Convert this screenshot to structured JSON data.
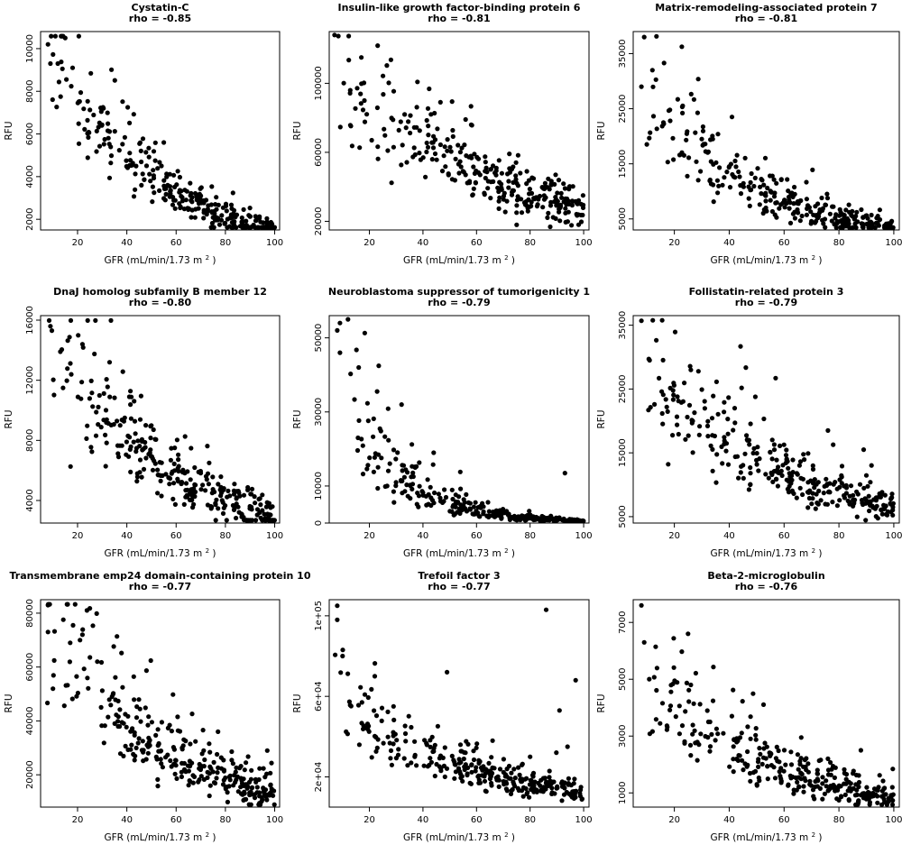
{
  "figure": {
    "xlabel": "GFR (mL/min/1.73 m",
    "xlabel_sup": "2",
    "xlabel_close": ")",
    "ylabel": "RFU"
  },
  "chart_data": [
    {
      "type": "scatter",
      "title": "Cystatin-C",
      "subtitle": "rho = -0.85",
      "xlabel": "GFR (mL/min/1.73 m2)",
      "ylabel": "RFU",
      "xlim": [
        5,
        102
      ],
      "ylim": [
        1500,
        10800
      ],
      "xticks": [
        20,
        40,
        60,
        80,
        100
      ],
      "yticks": [
        2000,
        4000,
        6000,
        8000,
        10000
      ],
      "ytick_labels": [
        "2000",
        "4000",
        "6000",
        "8000",
        "10000"
      ],
      "trend": {
        "type": "exp",
        "a": 11800,
        "b": 0.0215,
        "sd": 0.17
      },
      "outliers": [
        [
          8,
          10200
        ],
        [
          15,
          10500
        ],
        [
          12,
          9300
        ],
        [
          9,
          9300
        ],
        [
          18,
          9100
        ],
        [
          55,
          5600
        ],
        [
          88,
          1700
        ]
      ],
      "n_points": 300,
      "seed": 11
    },
    {
      "type": "scatter",
      "title": "Insulin-like growth factor-binding protein 6",
      "subtitle": "rho = -0.81",
      "xlabel": "GFR (mL/min/1.73 m2)",
      "ylabel": "RFU",
      "xlim": [
        5,
        102
      ],
      "ylim": [
        15000,
        130000
      ],
      "xticks": [
        20,
        40,
        60,
        80,
        100
      ],
      "yticks": [
        20000,
        60000,
        100000
      ],
      "ytick_labels": [
        "20000",
        "60000",
        "100000"
      ],
      "trend": {
        "type": "exp",
        "a": 120000,
        "b": 0.0148,
        "sd": 0.2
      },
      "outliers": [
        [
          7,
          128000
        ],
        [
          17,
          115000
        ],
        [
          43,
          82000
        ],
        [
          58,
          76000
        ],
        [
          75,
          18000
        ]
      ],
      "n_points": 300,
      "seed": 22
    },
    {
      "type": "scatter",
      "title": "Matrix-remodeling-associated protein 7",
      "subtitle": "rho = -0.81",
      "xlabel": "GFR (mL/min/1.73 m2)",
      "ylabel": "RFU",
      "xlim": [
        5,
        102
      ],
      "ylim": [
        3000,
        39000
      ],
      "xticks": [
        20,
        40,
        60,
        80,
        100
      ],
      "yticks": [
        5000,
        15000,
        25000,
        35000
      ],
      "ytick_labels": [
        "5000",
        "15000",
        "25000",
        "35000"
      ],
      "trend": {
        "type": "exp",
        "a": 34000,
        "b": 0.024,
        "sd": 0.25
      },
      "outliers": [
        [
          9,
          38000
        ],
        [
          12,
          32000
        ],
        [
          8,
          29000
        ],
        [
          41,
          23500
        ],
        [
          30,
          19500
        ],
        [
          34,
          19500
        ],
        [
          16,
          22500
        ]
      ],
      "n_points": 300,
      "seed": 33
    },
    {
      "type": "scatter",
      "title": "DnaJ homolog subfamily B member 12",
      "subtitle": "rho = -0.80",
      "xlabel": "GFR (mL/min/1.73 m2)",
      "ylabel": "RFU",
      "xlim": [
        5,
        102
      ],
      "ylim": [
        2500,
        16300
      ],
      "xticks": [
        20,
        40,
        60,
        80,
        100
      ],
      "yticks": [
        4000,
        8000,
        12000,
        16000
      ],
      "ytick_labels": [
        "4000",
        "8000",
        "12000",
        "16000"
      ],
      "trend": {
        "type": "exp",
        "a": 16000,
        "b": 0.0175,
        "sd": 0.2
      },
      "outliers": [
        [
          9,
          15600
        ],
        [
          22,
          14400
        ],
        [
          33,
          13200
        ],
        [
          41,
          10900
        ],
        [
          13,
          13900
        ]
      ],
      "n_points": 300,
      "seed": 44
    },
    {
      "type": "scatter",
      "title": "Neuroblastoma suppressor of tumorigenicity 1",
      "subtitle": "rho = -0.79",
      "xlabel": "GFR (mL/min/1.73 m2)",
      "ylabel": "RFU",
      "xlim": [
        5,
        102
      ],
      "ylim": [
        0,
        56000
      ],
      "xticks": [
        20,
        40,
        60,
        80,
        100
      ],
      "yticks": [
        0,
        10000,
        30000,
        50000
      ],
      "ytick_labels": [
        "0",
        "10000",
        "30000",
        "50000"
      ],
      "trend": {
        "type": "exp",
        "a": 60000,
        "b": 0.048,
        "sd": 0.35
      },
      "outliers": [
        [
          9,
          54000
        ],
        [
          8,
          52000
        ],
        [
          12,
          55000
        ],
        [
          9,
          46000
        ],
        [
          16,
          42000
        ],
        [
          32,
          32000
        ],
        [
          44,
          19000
        ],
        [
          93,
          13500
        ]
      ],
      "n_points": 300,
      "seed": 55
    },
    {
      "type": "scatter",
      "title": "Follistatin-related protein 3",
      "subtitle": "rho = -0.79",
      "xlabel": "GFR (mL/min/1.73 m2)",
      "ylabel": "RFU",
      "xlim": [
        5,
        102
      ],
      "ylim": [
        4000,
        36500
      ],
      "xticks": [
        20,
        40,
        60,
        80,
        100
      ],
      "yticks": [
        5000,
        15000,
        25000,
        35000
      ],
      "ytick_labels": [
        "5000",
        "15000",
        "25000",
        "35000"
      ],
      "trend": {
        "type": "exp",
        "a": 33000,
        "b": 0.0165,
        "sd": 0.2
      },
      "outliers": [
        [
          8,
          35700
        ],
        [
          11,
          29500
        ],
        [
          26,
          28000
        ],
        [
          42,
          22000
        ],
        [
          76,
          18500
        ],
        [
          89,
          15500
        ]
      ],
      "n_points": 300,
      "seed": 66
    },
    {
      "type": "scatter",
      "title": "Transmembrane emp24 domain-containing protein 10",
      "subtitle": "rho = -0.77",
      "xlabel": "GFR (mL/min/1.73 m2)",
      "ylabel": "RFU",
      "xlim": [
        5,
        102
      ],
      "ylim": [
        8000,
        85000
      ],
      "xticks": [
        20,
        40,
        60,
        80,
        100
      ],
      "yticks": [
        20000,
        40000,
        60000,
        80000
      ],
      "ytick_labels": [
        "20000",
        "40000",
        "60000",
        "80000"
      ],
      "trend": {
        "type": "exp",
        "a": 80000,
        "b": 0.0178,
        "sd": 0.25
      },
      "outliers": [
        [
          8,
          83000
        ],
        [
          8,
          73000
        ],
        [
          22,
          72000
        ],
        [
          17,
          69000
        ],
        [
          34,
          49000
        ],
        [
          77,
          36000
        ],
        [
          97,
          29000
        ]
      ],
      "n_points": 300,
      "seed": 77
    },
    {
      "type": "scatter",
      "title": "Trefoil factor 3",
      "subtitle": "rho = -0.77",
      "xlabel": "GFR (mL/min/1.73 m2)",
      "ylabel": "RFU",
      "xlim": [
        5,
        102
      ],
      "ylim": [
        5000,
        108000
      ],
      "xticks": [
        20,
        40,
        60,
        80,
        100
      ],
      "yticks": [
        20000,
        60000,
        100000
      ],
      "ytick_labels": [
        "2e+04",
        "6e+04",
        "1e+05"
      ],
      "trend": {
        "type": "exp",
        "a": 65000,
        "b": 0.0175,
        "sd": 0.22
      },
      "outliers": [
        [
          8,
          105000
        ],
        [
          8,
          98000
        ],
        [
          86,
          103000
        ],
        [
          97,
          68000
        ],
        [
          49,
          72000
        ],
        [
          22,
          70000
        ],
        [
          10,
          80000
        ],
        [
          91,
          53000
        ],
        [
          54,
          36000
        ],
        [
          66,
          38000
        ],
        [
          29,
          55000
        ],
        [
          80,
          30000
        ],
        [
          94,
          35000
        ]
      ],
      "n_points": 300,
      "seed": 88
    },
    {
      "type": "scatter",
      "title": "Beta-2-microglobulin",
      "subtitle": "rho = -0.76",
      "xlabel": "GFR (mL/min/1.73 m2)",
      "ylabel": "RFU",
      "xlim": [
        5,
        102
      ],
      "ylim": [
        500,
        7800
      ],
      "xticks": [
        20,
        40,
        60,
        80,
        100
      ],
      "yticks": [
        1000,
        3000,
        5000,
        7000
      ],
      "ytick_labels": [
        "1000",
        "3000",
        "5000",
        "7000"
      ],
      "trend": {
        "type": "exp",
        "a": 6200,
        "b": 0.0205,
        "sd": 0.28
      },
      "outliers": [
        [
          8,
          7600
        ],
        [
          9,
          6300
        ],
        [
          25,
          6600
        ],
        [
          26,
          4800
        ],
        [
          33,
          3500
        ],
        [
          88,
          2500
        ],
        [
          76,
          2200
        ]
      ],
      "n_points": 300,
      "seed": 99
    }
  ]
}
